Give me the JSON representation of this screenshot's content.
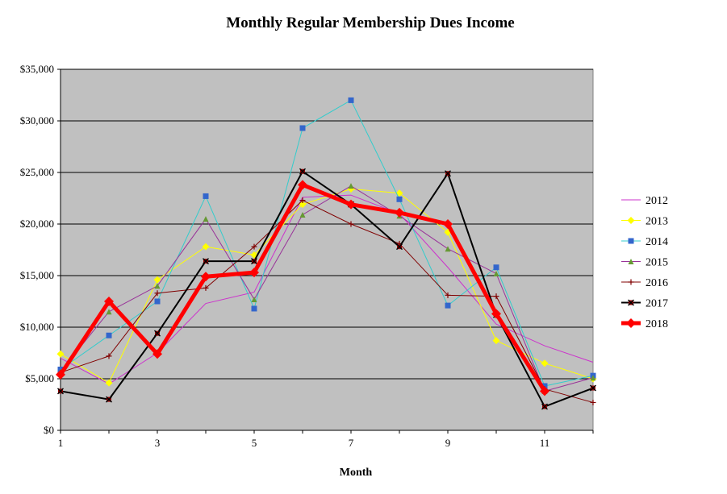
{
  "chart_data": {
    "type": "line",
    "title": "Monthly  Regular  Membership  Dues  Income",
    "xlabel": "Month",
    "ylabel": "",
    "x": [
      1,
      2,
      3,
      4,
      5,
      6,
      7,
      8,
      9,
      10,
      11,
      12
    ],
    "x_ticks": [
      "1",
      "3",
      "5",
      "7",
      "9",
      "11"
    ],
    "ylim": [
      0,
      35000
    ],
    "y_ticks": [
      "$0",
      "$5,000",
      "$10,000",
      "$15,000",
      "$20,000",
      "$25,000",
      "$30,000",
      "$35,000"
    ],
    "plot_background": "#c0c0c0",
    "grid": "horizontal major",
    "legend_position": "right",
    "series": [
      {
        "name": "2012",
        "color": "#cc33cc",
        "marker": "none",
        "width": 1,
        "values": [
          7000,
          4500,
          7500,
          12300,
          13400,
          22600,
          22800,
          21000,
          15800,
          10300,
          8200,
          6600
        ]
      },
      {
        "name": "2013",
        "color": "#ffff00",
        "marker": "diamond",
        "width": 1,
        "values": [
          7400,
          4600,
          14600,
          17800,
          17000,
          21900,
          23400,
          23000,
          19200,
          8700,
          6500,
          5000
        ]
      },
      {
        "name": "2014",
        "color": "#33cccc",
        "marker": "square",
        "markerColor": "#3366cc",
        "width": 1,
        "values": [
          5900,
          9200,
          12500,
          22700,
          11800,
          29300,
          32000,
          22400,
          12100,
          15800,
          4300,
          5300
        ]
      },
      {
        "name": "2015",
        "color": "#993399",
        "marker": "triangle",
        "markerColor": "#669933",
        "width": 1,
        "values": [
          5700,
          11500,
          14000,
          20500,
          12700,
          20900,
          23700,
          20800,
          17600,
          15200,
          3800,
          5100
        ]
      },
      {
        "name": "2016",
        "color": "#800000",
        "marker": "plus",
        "width": 1,
        "values": [
          5600,
          7200,
          13300,
          13800,
          17800,
          22300,
          20000,
          18100,
          13100,
          13000,
          4000,
          2700
        ]
      },
      {
        "name": "2017",
        "color": "#000000",
        "marker": "x",
        "markerColor": "#990000",
        "width": 2,
        "values": [
          3800,
          3000,
          9400,
          16400,
          16400,
          25100,
          21900,
          17800,
          24900,
          11200,
          2300,
          4100
        ]
      },
      {
        "name": "2018",
        "color": "#ff0000",
        "marker": "diamond",
        "width": 5,
        "values": [
          5400,
          12500,
          7400,
          14900,
          15300,
          23800,
          21900,
          21100,
          20000,
          11300,
          3800,
          null
        ]
      }
    ]
  }
}
